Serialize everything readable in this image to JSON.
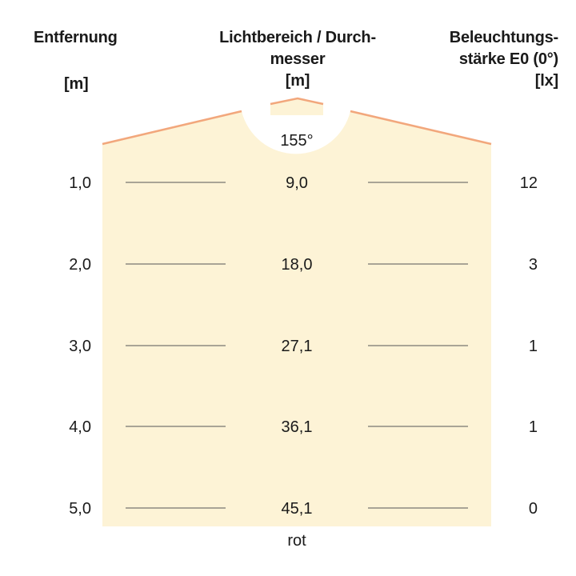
{
  "headers": {
    "distance_line1": "Entfernung",
    "distance_unit": "[m]",
    "diameter_line1": "Lichtbereich / Durch-",
    "diameter_line2": "messer",
    "diameter_unit": "[m]",
    "illuminance_line1": "Beleuchtungs-",
    "illuminance_line2": "stärke E0 (0°)",
    "illuminance_unit": "[lx]"
  },
  "beam_angle": "155°",
  "rows": [
    {
      "distance": "1,0",
      "diameter": "9,0",
      "illuminance": "12"
    },
    {
      "distance": "2,0",
      "diameter": "18,0",
      "illuminance": "3"
    },
    {
      "distance": "3,0",
      "diameter": "27,1",
      "illuminance": "1"
    },
    {
      "distance": "4,0",
      "diameter": "36,1",
      "illuminance": "1"
    },
    {
      "distance": "5,0",
      "diameter": "45,1",
      "illuminance": "0"
    }
  ],
  "footer": "rot",
  "colors": {
    "light_fill": "#fdf3d6",
    "beam_edge": "#f2a77c",
    "rule_line": "#555555",
    "text": "#1a1a1a"
  }
}
